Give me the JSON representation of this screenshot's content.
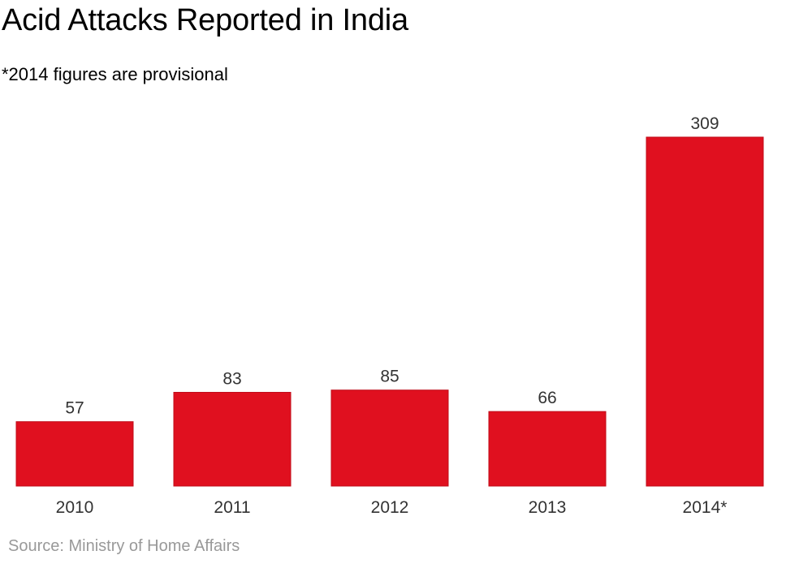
{
  "title": "Acid Attacks Reported in India",
  "subtitle": "*2014 figures are provisional",
  "source": "Source: Ministry of Home Affairs",
  "colors": {
    "bar": "#e0101f",
    "bar_border": "#c00d1a",
    "text": "#333333",
    "source": "#999999"
  },
  "chart_data": {
    "type": "bar",
    "title": "Acid Attacks Reported in India",
    "subtitle": "*2014 figures are provisional",
    "categories": [
      "2010",
      "2011",
      "2012",
      "2013",
      "2014*"
    ],
    "values": [
      57,
      83,
      85,
      66,
      309
    ],
    "xlabel": "",
    "ylabel": "",
    "ylim": [
      0,
      309
    ],
    "grid": false,
    "legend": "none",
    "data_labels": true
  }
}
